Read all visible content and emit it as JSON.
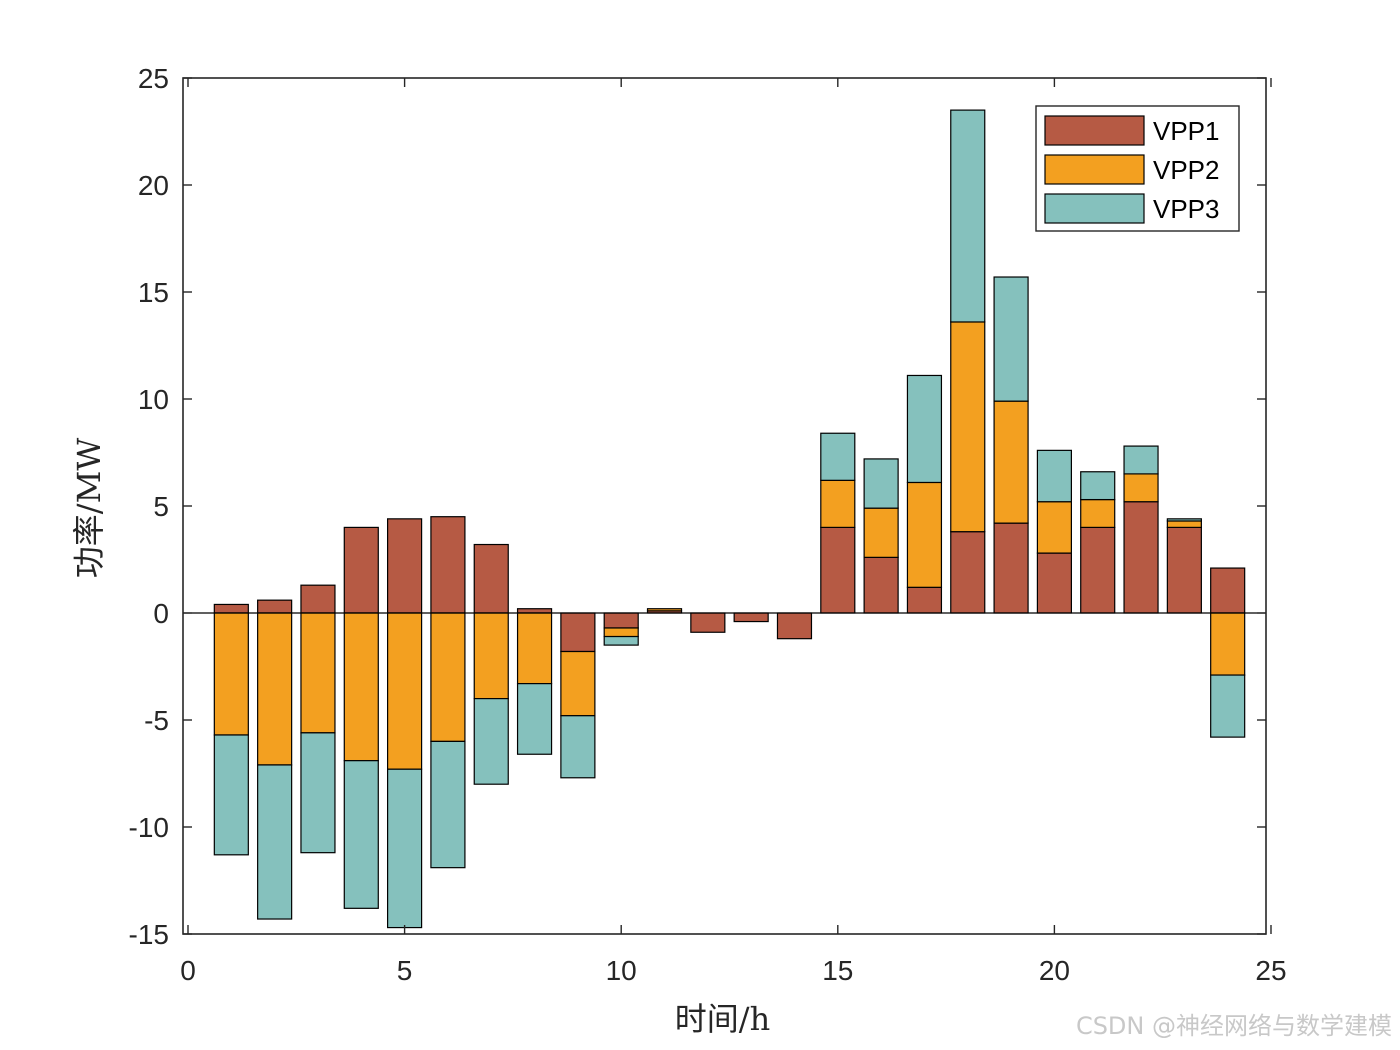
{
  "chart_data": {
    "type": "bar",
    "stacked": true,
    "title": "",
    "xlabel": "时间/h",
    "ylabel": "功率/MW",
    "xlim": [
      0,
      25
    ],
    "ylim": [
      -15,
      25
    ],
    "xticks": [
      0,
      5,
      10,
      15,
      20,
      25
    ],
    "yticks": [
      25,
      20,
      15,
      10,
      5,
      0,
      -5,
      -10,
      -15
    ],
    "x": [
      1,
      2,
      3,
      4,
      5,
      6,
      7,
      8,
      9,
      10,
      11,
      12,
      13,
      14,
      15,
      16,
      17,
      18,
      19,
      20,
      21,
      22,
      23,
      24
    ],
    "series": [
      {
        "name": "VPP1",
        "color": "#B65A44",
        "values": [
          0.4,
          0.6,
          1.3,
          4.0,
          4.4,
          4.5,
          3.2,
          0.2,
          -1.8,
          -0.7,
          0.1,
          -0.9,
          -0.4,
          -1.2,
          4.0,
          2.6,
          1.2,
          3.8,
          4.2,
          2.8,
          4.0,
          5.2,
          4.0,
          2.1
        ]
      },
      {
        "name": "VPP2",
        "color": "#F3A020",
        "values": [
          -5.7,
          -7.1,
          -5.6,
          -6.9,
          -7.3,
          -6.0,
          -4.0,
          -3.3,
          -3.0,
          -0.4,
          0.1,
          0.0,
          0.0,
          0.0,
          2.2,
          2.3,
          4.9,
          9.8,
          5.7,
          2.4,
          1.3,
          1.3,
          0.3,
          -2.9
        ]
      },
      {
        "name": "VPP3",
        "color": "#85C1BD",
        "values": [
          -5.6,
          -7.2,
          -5.6,
          -6.9,
          -7.4,
          -5.9,
          -4.0,
          -3.3,
          -2.9,
          -0.4,
          0.0,
          0.0,
          0.0,
          0.0,
          2.2,
          2.3,
          5.0,
          9.9,
          5.8,
          2.4,
          1.3,
          1.3,
          0.1,
          -2.9
        ]
      }
    ],
    "legend_position": "top-right",
    "grid": false
  },
  "watermark": "CSDN @神经网络与数学建模"
}
